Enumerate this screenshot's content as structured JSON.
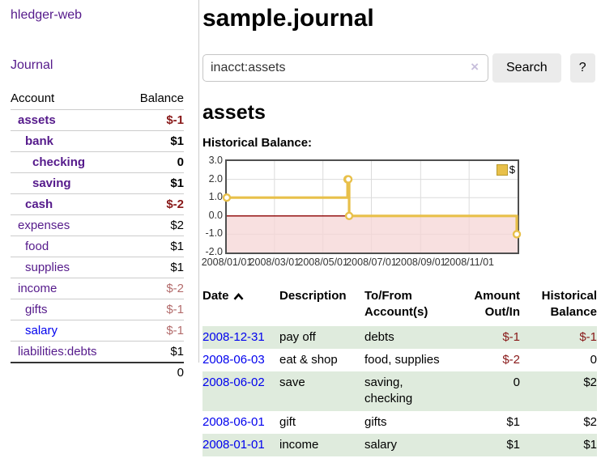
{
  "app": {
    "title": "hledger-web"
  },
  "sidebar": {
    "journal_link": "Journal",
    "headers": {
      "account": "Account",
      "balance": "Balance"
    },
    "accounts": [
      {
        "name": "assets",
        "balance": "$-1",
        "indent": 1,
        "bold": true,
        "neg": "strong",
        "blue": false
      },
      {
        "name": "bank",
        "balance": "$1",
        "indent": 2,
        "bold": true,
        "neg": null,
        "blue": false
      },
      {
        "name": "checking",
        "balance": "0",
        "indent": 3,
        "bold": true,
        "neg": null,
        "blue": false
      },
      {
        "name": "saving",
        "balance": "$1",
        "indent": 3,
        "bold": true,
        "neg": null,
        "blue": false
      },
      {
        "name": "cash",
        "balance": "$-2",
        "indent": 2,
        "bold": true,
        "neg": "strong",
        "blue": false
      },
      {
        "name": "expenses",
        "balance": "$2",
        "indent": 1,
        "bold": false,
        "neg": null,
        "blue": false
      },
      {
        "name": "food",
        "balance": "$1",
        "indent": 2,
        "bold": false,
        "neg": null,
        "blue": false
      },
      {
        "name": "supplies",
        "balance": "$1",
        "indent": 2,
        "bold": false,
        "neg": null,
        "blue": false
      },
      {
        "name": "income",
        "balance": "$-2",
        "indent": 1,
        "bold": false,
        "neg": "dim",
        "blue": false
      },
      {
        "name": "gifts",
        "balance": "$-1",
        "indent": 2,
        "bold": false,
        "neg": "dim",
        "blue": false
      },
      {
        "name": "salary",
        "balance": "$-1",
        "indent": 2,
        "bold": false,
        "neg": "dim",
        "blue": true
      },
      {
        "name": "liabilities:debts",
        "balance": "$1",
        "indent": 1,
        "bold": false,
        "neg": null,
        "blue": false
      }
    ],
    "total": "0"
  },
  "main": {
    "title": "sample.journal",
    "search": {
      "value": "inacct:assets",
      "clear_icon": "×",
      "button_label": "Search",
      "help_label": "?"
    },
    "account_title": "assets"
  },
  "chart_data": {
    "type": "line",
    "title": "Historical Balance:",
    "style": "step-after",
    "x_start": "2008-01-01",
    "x_end": "2009-01-01",
    "ylim": [
      -2.0,
      3.0
    ],
    "yticks": [
      "3.0",
      "2.0",
      "1.0",
      "0.0",
      "-1.0",
      "-2.0"
    ],
    "xticks": [
      "2008/01/01",
      "2008/03/01",
      "2008/05/01",
      "2008/07/01",
      "2008/09/01",
      "2008/11/01"
    ],
    "grid": true,
    "legend_position": "top-right",
    "series": [
      {
        "name": "$",
        "color": "#e8c04a",
        "points": [
          {
            "x": "2008-01-01",
            "y": 1
          },
          {
            "x": "2008-06-01",
            "y": 2
          },
          {
            "x": "2008-06-02",
            "y": 2
          },
          {
            "x": "2008-06-03",
            "y": 0
          },
          {
            "x": "2008-12-31",
            "y": -1
          }
        ]
      }
    ],
    "negative_region": {
      "y_from": 0,
      "y_to": -2,
      "fill": "#f6d6d6",
      "zero_line_color": "#8b0000"
    }
  },
  "register": {
    "headers": [
      {
        "label": "Date",
        "label2": "",
        "sortable": true
      },
      {
        "label": "Description",
        "label2": "",
        "sortable": false
      },
      {
        "label": "To/From",
        "label2": "Account(s)",
        "sortable": false
      },
      {
        "label": "Amount",
        "label2": "Out/In",
        "sortable": false
      },
      {
        "label": "Historical",
        "label2": "Balance",
        "sortable": false
      }
    ],
    "rows": [
      {
        "date": "2008-12-31",
        "description": "pay off",
        "accounts": "debts",
        "amount": "$-1",
        "amount_negative": true,
        "balance": "$-1",
        "balance_negative": true
      },
      {
        "date": "2008-06-03",
        "description": "eat & shop",
        "accounts": "food, supplies",
        "amount": "$-2",
        "amount_negative": true,
        "balance": "0",
        "balance_negative": false
      },
      {
        "date": "2008-06-02",
        "description": "save",
        "accounts": "saving, checking",
        "amount": "0",
        "amount_negative": false,
        "balance": "$2",
        "balance_negative": false
      },
      {
        "date": "2008-06-01",
        "description": "gift",
        "accounts": "gifts",
        "amount": "$1",
        "amount_negative": false,
        "balance": "$2",
        "balance_negative": false
      },
      {
        "date": "2008-01-01",
        "description": "income",
        "accounts": "salary",
        "amount": "$1",
        "amount_negative": false,
        "balance": "$1",
        "balance_negative": false
      }
    ]
  },
  "colors": {
    "link_purple": "#551a8b",
    "link_blue": "#0000ee",
    "negative_strong": "#881818",
    "negative_dim": "#b36b6b",
    "row_green": "#dfebdd",
    "chart_line": "#e8c04a",
    "chart_negative_fill": "#f6d6d6",
    "chart_zero_line": "#8b0000"
  }
}
